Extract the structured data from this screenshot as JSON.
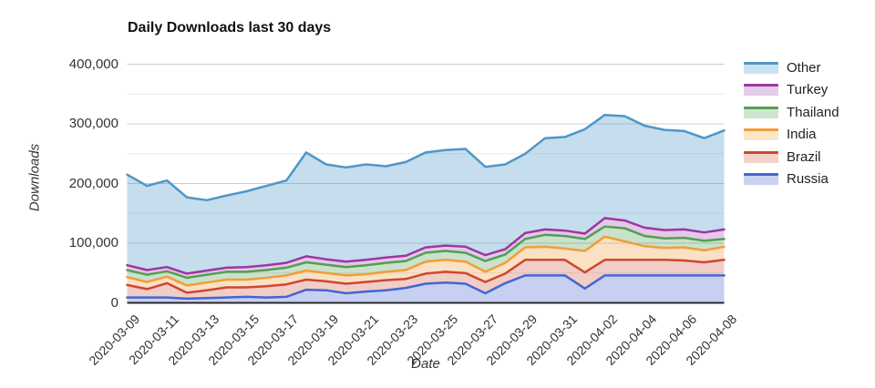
{
  "chart_data": {
    "type": "area",
    "stacked": true,
    "title": "Daily Downloads last 30 days",
    "xlabel": "Date",
    "ylabel": "Downloads",
    "ylim": [
      0,
      400000
    ],
    "grid": {
      "major_step": 100000,
      "minor_step": 50000,
      "major_color": "#cdcdcd",
      "minor_color": "#e9e9e9",
      "baseline_color": "#2a2a2a"
    },
    "y_ticks": [
      {
        "value": 0,
        "label": "0"
      },
      {
        "value": 100000,
        "label": "100,000"
      },
      {
        "value": 200000,
        "label": "200,000"
      },
      {
        "value": 300000,
        "label": "300,000"
      },
      {
        "value": 400000,
        "label": "400,000"
      }
    ],
    "x": [
      "2020-03-09",
      "2020-03-10",
      "2020-03-11",
      "2020-03-12",
      "2020-03-13",
      "2020-03-14",
      "2020-03-15",
      "2020-03-16",
      "2020-03-17",
      "2020-03-18",
      "2020-03-19",
      "2020-03-20",
      "2020-03-21",
      "2020-03-22",
      "2020-03-23",
      "2020-03-24",
      "2020-03-25",
      "2020-03-26",
      "2020-03-27",
      "2020-03-28",
      "2020-03-29",
      "2020-03-30",
      "2020-03-31",
      "2020-04-01",
      "2020-04-02",
      "2020-04-03",
      "2020-04-04",
      "2020-04-05",
      "2020-04-06",
      "2020-04-07",
      "2020-04-08"
    ],
    "x_tick_every": 2,
    "series": [
      {
        "name": "Russia",
        "line_color": "#4465d2",
        "fill_color": "rgba(68,101,210,0.30)",
        "swatch_fill": "#c8d3f2",
        "values": [
          9000,
          9000,
          9000,
          7000,
          8000,
          9000,
          10000,
          9000,
          10000,
          22000,
          21000,
          16000,
          19000,
          21000,
          25000,
          32000,
          34000,
          32000,
          16000,
          33000,
          46000,
          46000,
          46000,
          24000,
          46000,
          46000,
          46000,
          46000,
          46000,
          46000,
          46000
        ]
      },
      {
        "name": "Brazil",
        "line_color": "#cd4731",
        "fill_color": "rgba(205,71,49,0.27)",
        "swatch_fill": "#f2d3c9",
        "values": [
          21000,
          14000,
          24000,
          10000,
          13000,
          17000,
          16000,
          19000,
          21000,
          17000,
          15000,
          16000,
          16000,
          17000,
          15000,
          17000,
          18000,
          18000,
          19000,
          16000,
          26000,
          26000,
          26000,
          27000,
          26000,
          26000,
          26000,
          26000,
          25000,
          22000,
          26000
        ]
      },
      {
        "name": "India",
        "line_color": "#f19d38",
        "fill_color": "rgba(241,157,56,0.30)",
        "swatch_fill": "#fbe6c8",
        "values": [
          13000,
          12000,
          11000,
          12000,
          13000,
          13000,
          13000,
          14000,
          15000,
          15000,
          14000,
          14000,
          13000,
          14000,
          15000,
          20000,
          20000,
          19000,
          17000,
          18000,
          21000,
          22000,
          19000,
          36000,
          39000,
          31000,
          23000,
          20000,
          22000,
          20000,
          22000
        ]
      },
      {
        "name": "Thailand",
        "line_color": "#51a053",
        "fill_color": "rgba(81,160,83,0.30)",
        "swatch_fill": "#d0e5cf",
        "values": [
          12000,
          12000,
          9000,
          13000,
          13000,
          13000,
          13000,
          13000,
          13000,
          14000,
          14000,
          14000,
          15000,
          15000,
          15000,
          15000,
          15000,
          15000,
          18000,
          14000,
          14000,
          20000,
          21000,
          20000,
          17000,
          22000,
          17000,
          16000,
          16000,
          16000,
          13000
        ]
      },
      {
        "name": "Turkey",
        "line_color": "#9c36a3",
        "fill_color": "rgba(156,54,163,0.27)",
        "swatch_fill": "#e3cde8",
        "values": [
          8000,
          8000,
          7000,
          7000,
          7000,
          7000,
          8000,
          8000,
          8000,
          10000,
          9000,
          9000,
          9000,
          9000,
          9000,
          9000,
          9000,
          10000,
          10000,
          9000,
          10000,
          9000,
          9000,
          9000,
          14000,
          13000,
          14000,
          14000,
          14000,
          14000,
          16000
        ]
      },
      {
        "name": "Other",
        "line_color": "#4e97c8",
        "fill_color": "rgba(78,151,200,0.33)",
        "swatch_fill": "#cde2f0",
        "values": [
          152000,
          141000,
          145000,
          128000,
          118000,
          121000,
          127000,
          133000,
          138000,
          174000,
          159000,
          158000,
          160000,
          153000,
          157000,
          159000,
          160000,
          164000,
          148000,
          142000,
          133000,
          153000,
          157000,
          175000,
          173000,
          175000,
          171000,
          168000,
          165000,
          158000,
          166000
        ]
      }
    ],
    "legend_order": [
      "Other",
      "Turkey",
      "Thailand",
      "India",
      "Brazil",
      "Russia"
    ],
    "legend_position": "right"
  }
}
